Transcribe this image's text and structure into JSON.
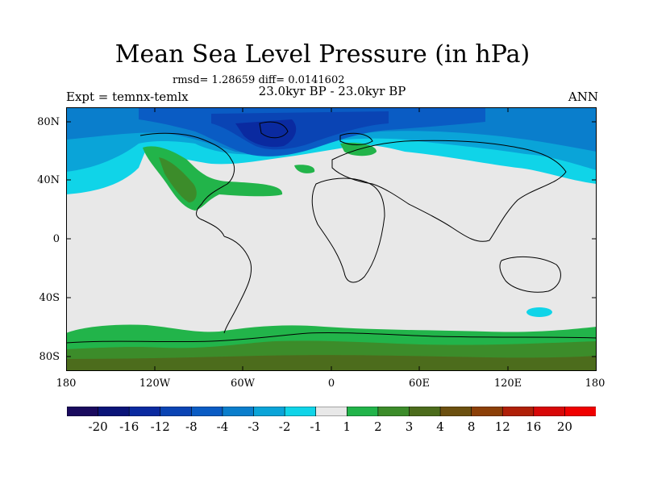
{
  "title": "Mean Sea Level Pressure (in hPa)",
  "stats": "rmsd= 1.28659 diff= 0.0141602",
  "period": "23.0kyr BP - 23.0kyr BP",
  "experiment": "Expt = temnx-temlx",
  "season": "ANN",
  "lat_labels": [
    "80N",
    "40N",
    "0",
    "40S",
    "80S"
  ],
  "lon_labels": [
    "180",
    "120W",
    "60W",
    "0",
    "60E",
    "120E",
    "180"
  ],
  "colorbar": {
    "labels": [
      "-20",
      "-16",
      "-12",
      "-8",
      "-4",
      "-3",
      "-2",
      "-1",
      "1",
      "2",
      "3",
      "4",
      "8",
      "12",
      "16",
      "20"
    ],
    "colors": [
      "#1a0a5e",
      "#0a1478",
      "#0a2aa0",
      "#0a44b4",
      "#0a5cc4",
      "#0a7ecc",
      "#0aa4d8",
      "#10d4e8",
      "#e8e8e8",
      "#22b44a",
      "#3c8c2a",
      "#4c6c1c",
      "#6c5010",
      "#8c4008",
      "#b02008",
      "#d80808",
      "#f00000"
    ]
  },
  "colors": {
    "background_field": "#e8e8e8",
    "low_strong": "#0a44b4",
    "low_mid": "#0a7ecc",
    "low_weak": "#10d4e8",
    "high_weak": "#22b44a",
    "high_mid": "#3c8c2a",
    "high_strong": "#4c6c1c"
  }
}
